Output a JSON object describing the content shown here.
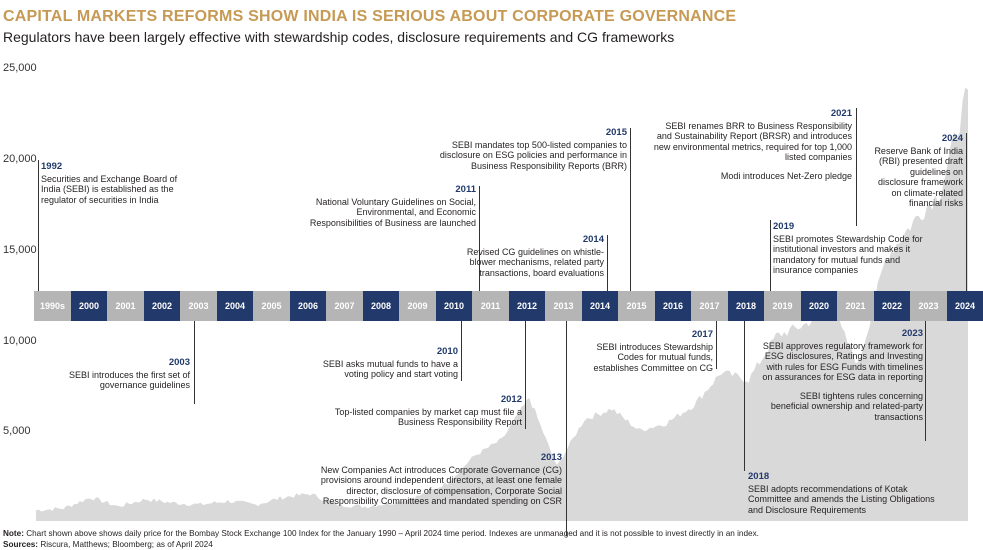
{
  "title": "CAPITAL MARKETS REFORMS SHOW INDIA IS SERIOUS ABOUT CORPORATE GOVERNANCE",
  "subtitle": "Regulators have been largely effective with stewardship codes, disclosure requirements and CG frameworks",
  "footer": {
    "note_label": "Note:",
    "note_text": " Chart shown above shows daily price for the Bombay Stock Exchange 100 Index for the January 1990 – April 2024 time period. Indexes are unmanaged and it is not possible to invest directly in an index.",
    "sources_label": "Sources:",
    "sources_text": " Riscura, Matthews; Bloomberg; as of April 2024"
  },
  "colors": {
    "title": "#c69a54",
    "timeline_dark": "#223a6b",
    "timeline_light": "#b5b5b5",
    "area": "#d9d9d9",
    "year_label": "#223a6b"
  },
  "chart_data": {
    "type": "area",
    "y_ticks": [
      "25,000",
      "20,000",
      "15,000",
      "10,000",
      "5,000"
    ],
    "ylim": [
      0,
      25000
    ],
    "timeline": [
      "1990s",
      "2000",
      "2001",
      "2002",
      "2003",
      "2004",
      "2005",
      "2006",
      "2007",
      "2008",
      "2009",
      "2010",
      "2011",
      "2012",
      "2013",
      "2014",
      "2015",
      "2016",
      "2017",
      "2018",
      "2019",
      "2020",
      "2021",
      "2022",
      "2023",
      "2024"
    ],
    "timeline_highlight": [
      "2000",
      "2002",
      "2004",
      "2006",
      "2008",
      "2010",
      "2012",
      "2014",
      "2016",
      "2018",
      "2020",
      "2022",
      "2024"
    ],
    "series": [
      {
        "x": [
          "1990",
          "1991",
          "1992",
          "1993",
          "1994",
          "1995",
          "1996",
          "1997",
          "1998",
          "1999",
          "2000",
          "2001",
          "2002",
          "2003",
          "2004",
          "2005",
          "2006",
          "2007",
          "2008",
          "2009",
          "2010",
          "2011",
          "2012",
          "2013",
          "2014",
          "2015",
          "2016",
          "2017",
          "2018",
          "2019",
          "2020",
          "2021",
          "2022",
          "2023",
          "2024"
        ],
        "values": [
          600,
          700,
          1300,
          800,
          1200,
          1000,
          900,
          1100,
          900,
          1300,
          1500,
          900,
          800,
          1000,
          1400,
          2100,
          3600,
          4500,
          6800,
          3000,
          5600,
          6200,
          5000,
          5400,
          6400,
          8200,
          7800,
          10200,
          10800,
          11800,
          8600,
          14500,
          16500,
          18200,
          23800
        ]
      }
    ]
  },
  "annotations": [
    {
      "year": "1992",
      "text": "Securities and Exchange Board of India (SEBI) is established as the regulator of securities in India"
    },
    {
      "year": "2003",
      "text": "SEBI introduces the first set of governance guidelines"
    },
    {
      "year": "2010",
      "text": "SEBI asks mutual funds to have a voting policy and start voting"
    },
    {
      "year": "2011",
      "text": "National Voluntary Guidelines on Social, Environmental, and Economic Responsibilities of Business are launched"
    },
    {
      "year": "2012",
      "text": "Top-listed companies by market cap must file a Business Responsibility Report"
    },
    {
      "year": "2013",
      "text": "New Companies Act introduces Corporate Governance (CG) provisions around independent directors, at least one female director, disclosure of compensation, Corporate Social Responsibility Committees and mandated spending on CSR"
    },
    {
      "year": "2014",
      "text": "Revised CG guidelines on whistle-blower mechanisms, related party transactions, board evaluations"
    },
    {
      "year": "2015",
      "text": "SEBI mandates top 500-listed companies to disclosure on ESG policies and performance in Business Responsibility Reports (BRR)"
    },
    {
      "year": "2017",
      "text": "SEBI introduces Stewardship Codes for mutual funds, establishes Committee on CG"
    },
    {
      "year": "2018",
      "text": "SEBI adopts recommendations of Kotak Committee and amends the Listing Obligations and Disclosure Requirements"
    },
    {
      "year": "2019",
      "text": "SEBI promotes Stewardship Code for institutional investors and makes it mandatory for mutual funds and insurance companies"
    },
    {
      "year": "2021",
      "text": "SEBI renames BRR to Business Responsibility and Sustainability Report (BRSR) and introduces new environmental metrics, required for top 1,000 listed companies",
      "text2": "Modi introduces Net-Zero pledge"
    },
    {
      "year": "2023",
      "text": "SEBI approves regulatory framework for ESG disclosures, Ratings and Investing with rules for ESG Funds with timelines on assurances for ESG data in reporting",
      "text2": "SEBI tightens rules concerning beneficial ownership and related-party transactions"
    },
    {
      "year": "2024",
      "text": "Reserve Bank of India (RBI) presented draft guidelines on disclosure framework on climate-related financial risks"
    }
  ]
}
